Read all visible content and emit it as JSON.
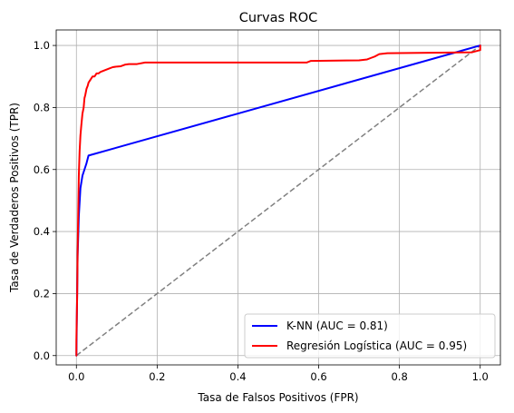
{
  "chart_data": {
    "type": "line",
    "title": "Curvas ROC",
    "xlabel": "Tasa de Falsos Positivos (FPR)",
    "ylabel": "Tasa de Verdaderos Positivos (TPR)",
    "xlim": [
      -0.05,
      1.05
    ],
    "ylim": [
      -0.03,
      1.05
    ],
    "xticks": [
      0.0,
      0.2,
      0.4,
      0.6,
      0.8,
      1.0
    ],
    "yticks": [
      0.0,
      0.2,
      0.4,
      0.6,
      0.8,
      1.0
    ],
    "xtick_labels": [
      "0.0",
      "0.2",
      "0.4",
      "0.6",
      "0.8",
      "1.0"
    ],
    "ytick_labels": [
      "0.0",
      "0.2",
      "0.4",
      "0.6",
      "0.8",
      "1.0"
    ],
    "grid": true,
    "legend_position": "lower-right",
    "series": [
      {
        "name": "K-NN (AUC = 0.81)",
        "color": "#0000ff",
        "x": [
          0.0,
          0.003,
          0.006,
          0.01,
          0.015,
          0.02,
          0.025,
          0.03,
          1.0
        ],
        "y": [
          0.0,
          0.32,
          0.45,
          0.54,
          0.58,
          0.6,
          0.62,
          0.645,
          1.0
        ]
      },
      {
        "name": "Regresión Logística (AUC = 0.95)",
        "color": "#ff0000",
        "x": [
          0.0,
          0.0,
          0.002,
          0.003,
          0.004,
          0.005,
          0.006,
          0.008,
          0.01,
          0.012,
          0.015,
          0.018,
          0.02,
          0.022,
          0.025,
          0.028,
          0.03,
          0.035,
          0.04,
          0.045,
          0.05,
          0.055,
          0.06,
          0.07,
          0.08,
          0.09,
          0.1,
          0.11,
          0.12,
          0.13,
          0.15,
          0.17,
          0.2,
          0.3,
          0.4,
          0.5,
          0.57,
          0.58,
          0.7,
          0.72,
          0.73,
          0.74,
          0.75,
          0.77,
          0.98,
          0.985,
          1.0,
          1.0
        ],
        "y": [
          0.0,
          0.05,
          0.2,
          0.33,
          0.42,
          0.5,
          0.58,
          0.66,
          0.71,
          0.74,
          0.78,
          0.8,
          0.83,
          0.84,
          0.86,
          0.87,
          0.88,
          0.89,
          0.9,
          0.9,
          0.91,
          0.91,
          0.915,
          0.92,
          0.925,
          0.93,
          0.932,
          0.933,
          0.938,
          0.94,
          0.94,
          0.945,
          0.945,
          0.945,
          0.945,
          0.945,
          0.945,
          0.95,
          0.952,
          0.955,
          0.96,
          0.965,
          0.972,
          0.975,
          0.978,
          0.98,
          0.985,
          1.0
        ]
      }
    ],
    "reference_line": {
      "x": [
        0.0,
        1.0
      ],
      "y": [
        0.0,
        1.0
      ],
      "color": "#808080",
      "style": "dashed"
    }
  }
}
